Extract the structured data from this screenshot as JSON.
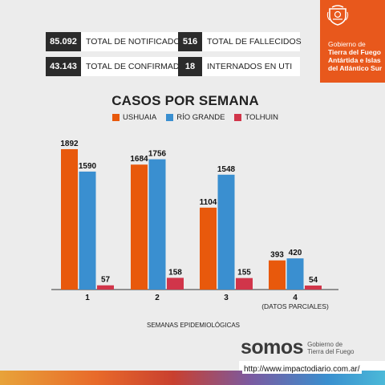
{
  "stats": {
    "notificados": {
      "value": "85.092",
      "label": "TOTAL DE NOTIFICADOS"
    },
    "confirmados": {
      "value": "43.143",
      "label": "TOTAL DE CONFIRMADOS"
    },
    "fallecidos": {
      "value": "516",
      "label": "TOTAL DE FALLECIDOS"
    },
    "uti": {
      "value": "18",
      "label": "INTERNADOS EN UTI"
    }
  },
  "gov": {
    "line1": "Gobierno de",
    "line2": "Tierra del Fuego",
    "line3": "Antártida e Islas",
    "line4": "del Atlántico Sur"
  },
  "chart_data": {
    "type": "bar",
    "title": "CASOS POR SEMANA",
    "xlabel": "SEMANAS EPIDEMIOLÓGICAS",
    "ylabel": "",
    "categories": [
      "1",
      "2",
      "3",
      "4"
    ],
    "category_sublabels": [
      "",
      "",
      "",
      "(DATOS PARCIALES)"
    ],
    "ylim": [
      0,
      2000
    ],
    "grid": false,
    "legend": "top-center",
    "series": [
      {
        "name": "USHUAIA",
        "color": "#e8590c",
        "values": [
          1892,
          1684,
          1104,
          393
        ]
      },
      {
        "name": "RÍO GRANDE",
        "color": "#3a8fd0",
        "values": [
          1590,
          1756,
          1548,
          420
        ]
      },
      {
        "name": "TOLHUIN",
        "color": "#d1354a",
        "values": [
          57,
          158,
          155,
          54
        ]
      }
    ]
  },
  "footer": {
    "brand": "somos",
    "brand_sub": "Gobierno de Tierra del Fuego",
    "url": "http://www.impactodiario.com.ar/"
  }
}
